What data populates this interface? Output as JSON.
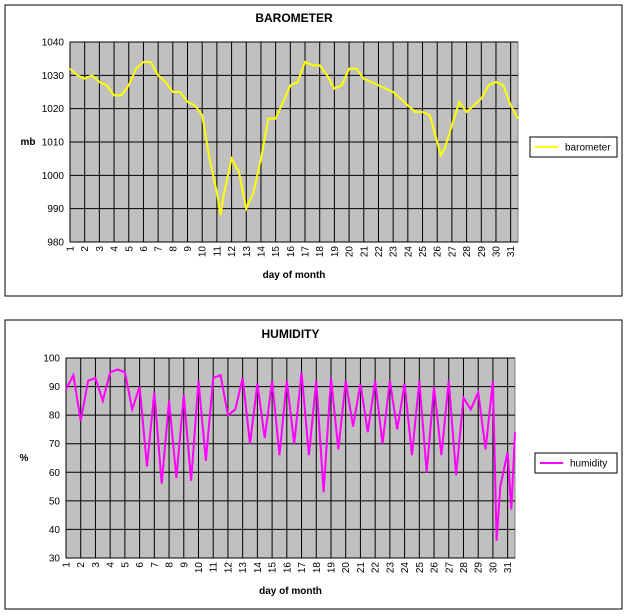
{
  "chart_data": [
    {
      "type": "line",
      "title": "BAROMETER",
      "x_label": "day of month",
      "y_label": "mb",
      "x": [
        1,
        1.5,
        2,
        2.5,
        3,
        3.5,
        4,
        4.5,
        5,
        5.5,
        6,
        6.5,
        7,
        7.5,
        8,
        8.5,
        9,
        9.5,
        10,
        10.5,
        11,
        11.25,
        11.5,
        12,
        12.5,
        13,
        13.5,
        14,
        14.5,
        15,
        15.5,
        16,
        16.5,
        17,
        17.5,
        18,
        18.5,
        19,
        19.5,
        20,
        20.5,
        21,
        21.5,
        22,
        22.5,
        23,
        23.5,
        24,
        24.5,
        25,
        25.5,
        26,
        26.25,
        26.5,
        27,
        27.5,
        28,
        28.5,
        29,
        29.5,
        30,
        30.5,
        31,
        31.5
      ],
      "series": [
        {
          "name": "barometer",
          "color": "#ffff00",
          "values": [
            1032,
            1030,
            1029,
            1030,
            1028,
            1027,
            1024,
            1024,
            1027,
            1032,
            1034,
            1034,
            1030,
            1028,
            1025,
            1025,
            1022,
            1021,
            1018,
            1005,
            995,
            988,
            995,
            1005,
            1001,
            990,
            995,
            1005,
            1017,
            1017,
            1022,
            1027,
            1028,
            1034,
            1033,
            1033,
            1030,
            1026,
            1027,
            1032,
            1032,
            1029,
            1028,
            1027,
            1026,
            1025,
            1023,
            1021,
            1019,
            1019,
            1018,
            1010,
            1006,
            1008,
            1015,
            1022,
            1019,
            1021,
            1023,
            1027,
            1028,
            1027,
            1021,
            1017
          ]
        }
      ],
      "xlim": [
        1,
        31.5
      ],
      "xticks": [
        1,
        2,
        3,
        4,
        5,
        6,
        7,
        8,
        9,
        10,
        11,
        12,
        13,
        14,
        15,
        16,
        17,
        18,
        19,
        20,
        21,
        22,
        23,
        24,
        25,
        26,
        27,
        28,
        29,
        30,
        31
      ],
      "ylim": [
        980,
        1040
      ],
      "yticks": [
        980,
        990,
        1000,
        1010,
        1020,
        1030,
        1040
      ],
      "grid": true,
      "legend": "right"
    },
    {
      "type": "line",
      "title": "HUMIDITY",
      "x_label": "day of month",
      "y_label": "%",
      "x": [
        1,
        1.5,
        2,
        2.5,
        3,
        3.5,
        4,
        4.5,
        5,
        5.5,
        6,
        6.5,
        7,
        7.5,
        8,
        8.5,
        9,
        9.5,
        10,
        10.5,
        11,
        11.5,
        12,
        12.5,
        13,
        13.5,
        14,
        14.5,
        15,
        15.5,
        16,
        16.5,
        17,
        17.5,
        18,
        18.5,
        19,
        19.5,
        20,
        20.5,
        21,
        21.5,
        22,
        22.5,
        23,
        23.5,
        24,
        24.5,
        25,
        25.5,
        26,
        26.5,
        27,
        27.5,
        28,
        28.5,
        29,
        29.5,
        30,
        30.25,
        30.5,
        31,
        31.25,
        31.5
      ],
      "series": [
        {
          "name": "humidity",
          "color": "#ff00ff",
          "values": [
            89,
            94,
            78,
            92,
            93,
            85,
            95,
            96,
            95,
            82,
            90,
            62,
            88,
            56,
            85,
            58,
            87,
            57,
            92,
            64,
            93,
            94,
            80,
            82,
            93,
            70,
            91,
            72,
            92,
            66,
            92,
            70,
            95,
            66,
            92,
            53,
            93,
            68,
            92,
            76,
            91,
            74,
            92,
            70,
            92,
            75,
            91,
            66,
            92,
            60,
            90,
            66,
            92,
            59,
            86,
            82,
            88,
            68,
            92,
            36,
            55,
            67,
            47,
            74
          ]
        }
      ],
      "xlim": [
        1,
        31.5
      ],
      "xticks": [
        1,
        2,
        3,
        4,
        5,
        6,
        7,
        8,
        9,
        10,
        11,
        12,
        13,
        14,
        15,
        16,
        17,
        18,
        19,
        20,
        21,
        22,
        23,
        24,
        25,
        26,
        27,
        28,
        29,
        30,
        31
      ],
      "ylim": [
        30,
        100
      ],
      "yticks": [
        30,
        40,
        50,
        60,
        70,
        80,
        90,
        100
      ],
      "grid": true,
      "legend": "right"
    }
  ]
}
